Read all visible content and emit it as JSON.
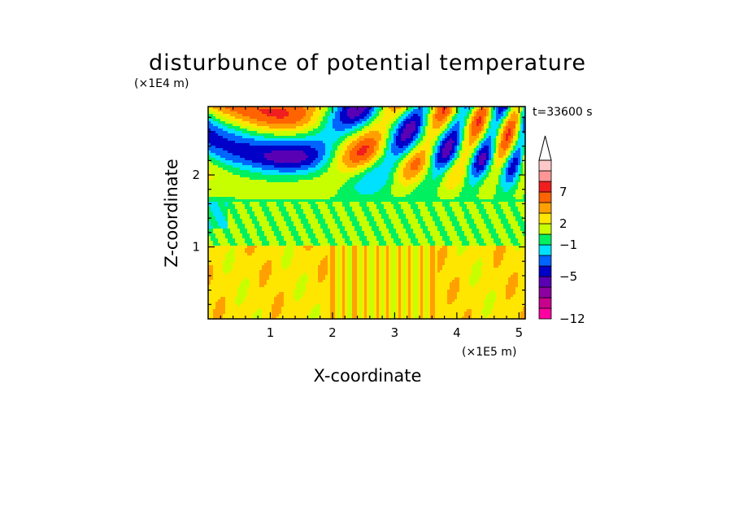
{
  "chart_data": {
    "type": "heatmap",
    "title": "disturbunce of potential temperature",
    "time_label": "t=33600 s",
    "xlabel": "X-coordinate",
    "ylabel": "Z-coordinate",
    "x_unit": "(×1E5 m)",
    "y_unit": "(×1E4 m)",
    "xlim": [
      0,
      5.1
    ],
    "ylim": [
      0,
      2.95
    ],
    "x_ticks": [
      "1",
      "2",
      "3",
      "4",
      "5"
    ],
    "y_ticks": [
      "1",
      "2"
    ],
    "colorbar": {
      "colors": [
        "#ff00a0",
        "#c8008c",
        "#8c00a0",
        "#5a00b4",
        "#0000c8",
        "#0064ff",
        "#00e1ff",
        "#00f060",
        "#c8ff00",
        "#ffe600",
        "#ffa000",
        "#ff6400",
        "#f01e1e",
        "#ff9696",
        "#ffc8c8"
      ],
      "tick_labels": [
        "-12",
        "-5",
        "-1",
        "2",
        "7"
      ],
      "extend": "max"
    }
  }
}
